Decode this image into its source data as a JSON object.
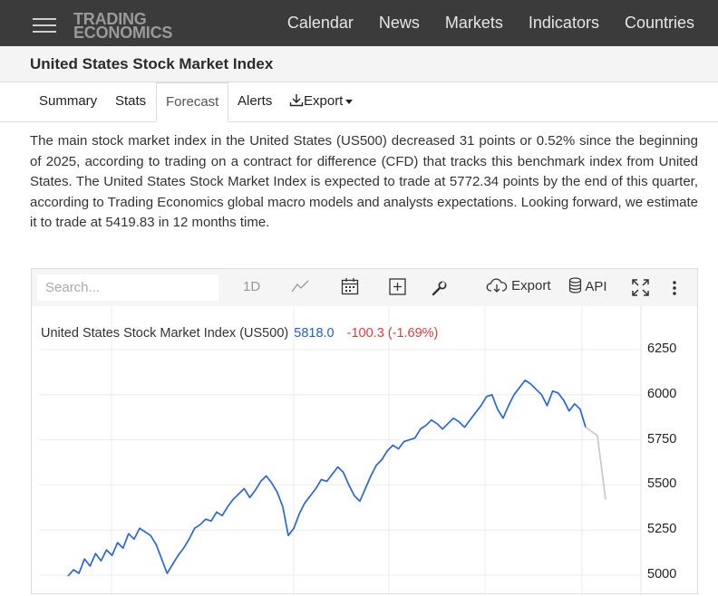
{
  "header": {
    "logo_line1": "TRADING",
    "logo_line2": "ECONOMICS",
    "nav": [
      "Calendar",
      "News",
      "Markets",
      "Indicators",
      "Countries"
    ]
  },
  "page_title": "United States Stock Market Index",
  "tabs": {
    "summary": "Summary",
    "stats": "Stats",
    "forecast": "Forecast",
    "alerts": "Alerts",
    "export": "Export",
    "active": "Forecast"
  },
  "description": "The main stock market index in the United States (US500) decreased 31 points or 0.52% since the beginning of 2025, according to trading on a contract for difference (CFD) that tracks this benchmark index from United States. The United States Stock Market Index is expected to trade at 5772.34 points by the end of this quarter, according to Trading Economics global macro models and analysts expectations. Looking forward, we estimate it to trade at 5419.83 in 12 months time.",
  "chart_toolbar": {
    "search_placeholder": "Search...",
    "range": "1D",
    "export": "Export",
    "api": "API"
  },
  "legend": {
    "name": "United States Stock Market Index (US500)",
    "price": "5818.0",
    "change": "-100.3 (-1.69%)"
  },
  "colors": {
    "series": "#2c64e0",
    "forecast": "#c8c8c8",
    "change_negative": "#e03c3c",
    "topbar": "#3b3b3b"
  },
  "chart_data": {
    "type": "line",
    "title": "",
    "yticks": [
      5000,
      5250,
      5500,
      5750,
      6000,
      6250
    ],
    "ylim": [
      4990,
      6330
    ],
    "grid": true,
    "series": [
      {
        "name": "United States Stock Market Index (US500)",
        "values": [
          4995,
          5030,
          5010,
          5090,
          5050,
          5120,
          5080,
          5140,
          5110,
          5180,
          5150,
          5230,
          5200,
          5260,
          5240,
          5220,
          5170,
          5090,
          5010,
          5060,
          5110,
          5150,
          5200,
          5260,
          5280,
          5310,
          5300,
          5350,
          5330,
          5380,
          5420,
          5450,
          5480,
          5430,
          5470,
          5520,
          5550,
          5510,
          5460,
          5380,
          5220,
          5260,
          5340,
          5400,
          5440,
          5480,
          5530,
          5520,
          5560,
          5600,
          5570,
          5500,
          5440,
          5410,
          5480,
          5550,
          5610,
          5640,
          5690,
          5720,
          5700,
          5740,
          5750,
          5760,
          5810,
          5830,
          5860,
          5840,
          5810,
          5840,
          5870,
          5850,
          5820,
          5860,
          5900,
          5940,
          5990,
          6000,
          5920,
          5870,
          5940,
          6000,
          6040,
          6080,
          6060,
          6030,
          6000,
          5940,
          6020,
          6010,
          5970,
          5910,
          5950,
          5920,
          5820
        ]
      },
      {
        "name": "Forecast",
        "values": [
          5820,
          5772.34,
          5419.83
        ]
      }
    ]
  }
}
